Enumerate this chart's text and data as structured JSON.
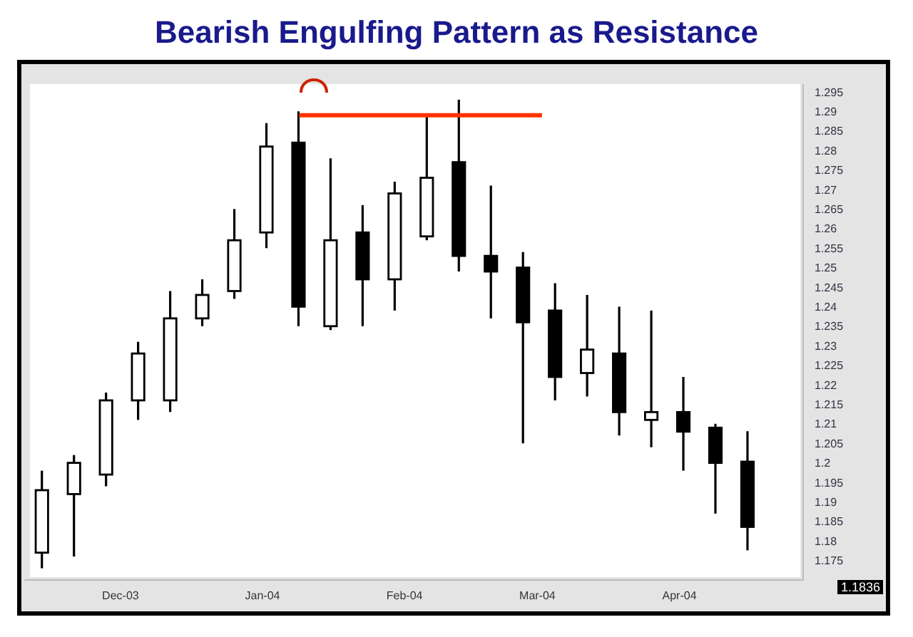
{
  "chart_data": {
    "type": "candlestick",
    "title": "Bearish Engulfing Pattern as Resistance",
    "x": [
      "2003-11-14",
      "2003-11-21",
      "2003-11-28",
      "2003-12-05",
      "2003-12-12",
      "2003-12-19",
      "2003-12-26",
      "2004-01-02",
      "2004-01-09",
      "2004-01-16",
      "2004-01-23",
      "2004-01-30",
      "2004-02-06",
      "2004-02-13",
      "2004-02-20",
      "2004-02-27",
      "2004-03-05",
      "2004-03-12",
      "2004-03-19",
      "2004-03-26",
      "2004-04-02",
      "2004-04-09",
      "2004-04-16"
    ],
    "ohlc": [
      [
        1.177,
        1.198,
        1.173,
        1.193
      ],
      [
        1.192,
        1.202,
        1.176,
        1.2
      ],
      [
        1.197,
        1.218,
        1.194,
        1.216
      ],
      [
        1.216,
        1.231,
        1.211,
        1.228
      ],
      [
        1.216,
        1.244,
        1.213,
        1.237
      ],
      [
        1.237,
        1.247,
        1.235,
        1.243
      ],
      [
        1.244,
        1.265,
        1.242,
        1.257
      ],
      [
        1.259,
        1.287,
        1.255,
        1.281
      ],
      [
        1.282,
        1.29,
        1.235,
        1.24
      ],
      [
        1.235,
        1.278,
        1.234,
        1.257
      ],
      [
        1.259,
        1.266,
        1.235,
        1.247
      ],
      [
        1.247,
        1.272,
        1.239,
        1.269
      ],
      [
        1.258,
        1.289,
        1.257,
        1.273
      ],
      [
        1.277,
        1.293,
        1.249,
        1.253
      ],
      [
        1.253,
        1.271,
        1.237,
        1.249
      ],
      [
        1.25,
        1.254,
        1.205,
        1.236
      ],
      [
        1.239,
        1.246,
        1.216,
        1.222
      ],
      [
        1.223,
        1.243,
        1.217,
        1.229
      ],
      [
        1.228,
        1.24,
        1.207,
        1.213
      ],
      [
        1.211,
        1.239,
        1.204,
        1.213
      ],
      [
        1.213,
        1.222,
        1.198,
        1.208
      ],
      [
        1.209,
        1.21,
        1.187,
        1.2
      ],
      [
        1.2003,
        1.2081,
        1.1776,
        1.1836
      ]
    ],
    "series": [
      {
        "type": "line",
        "color": "#ff3300",
        "x": [
          "2004-01-09",
          "2004-03-02"
        ],
        "values": [
          1.289,
          1.289
        ]
      }
    ],
    "xlim": [
      "2003-11-10",
      "2004-04-28"
    ],
    "xticks": [
      {
        "value": "2003-12-01",
        "label": "Dec-03"
      },
      {
        "value": "2004-01-01",
        "label": "Jan-04"
      },
      {
        "value": "2004-02-01",
        "label": "Feb-04"
      },
      {
        "value": "2004-03-01",
        "label": "Mar-04"
      },
      {
        "value": "2004-04-01",
        "label": "Apr-04"
      }
    ],
    "ylim": [
      1.17,
      1.297
    ],
    "yticks": [
      1.175,
      1.18,
      1.185,
      1.19,
      1.195,
      1.2,
      1.205,
      1.21,
      1.215,
      1.22,
      1.225,
      1.23,
      1.235,
      1.24,
      1.245,
      1.25,
      1.255,
      1.26,
      1.265,
      1.27,
      1.275,
      1.28,
      1.285,
      1.29,
      1.295
    ],
    "annotations": [
      "1.1836"
    ]
  }
}
